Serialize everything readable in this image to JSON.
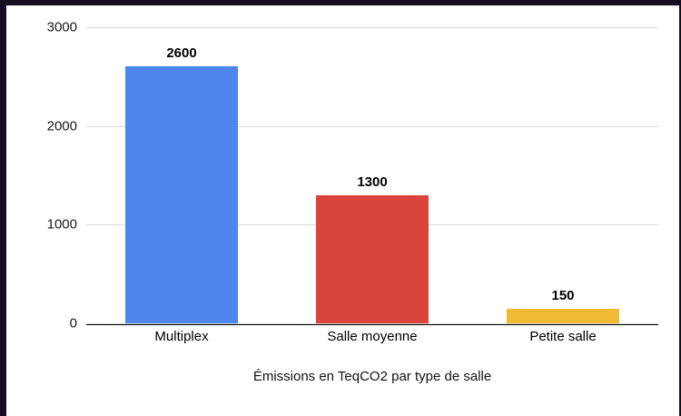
{
  "chart_data": {
    "type": "bar",
    "title": "Émissions en TeqCO2 par type de salle",
    "categories": [
      "Multiplex",
      "Salle moyenne",
      "Petite salle"
    ],
    "values": [
      2600,
      1300,
      150
    ],
    "data_labels": [
      "2600",
      "1300",
      "150"
    ],
    "bar_colors": [
      "#4d86ec",
      "#d9453a",
      "#efbb33"
    ],
    "xlabel": "",
    "ylabel": "",
    "ylim": [
      0,
      3000
    ],
    "yticks": [
      0,
      1000,
      2000,
      3000
    ],
    "grid": true,
    "legend_position": "none",
    "colors": {
      "gridline": "#d9d9d9",
      "axis": "#000000",
      "window_edge": "#150d20"
    }
  }
}
